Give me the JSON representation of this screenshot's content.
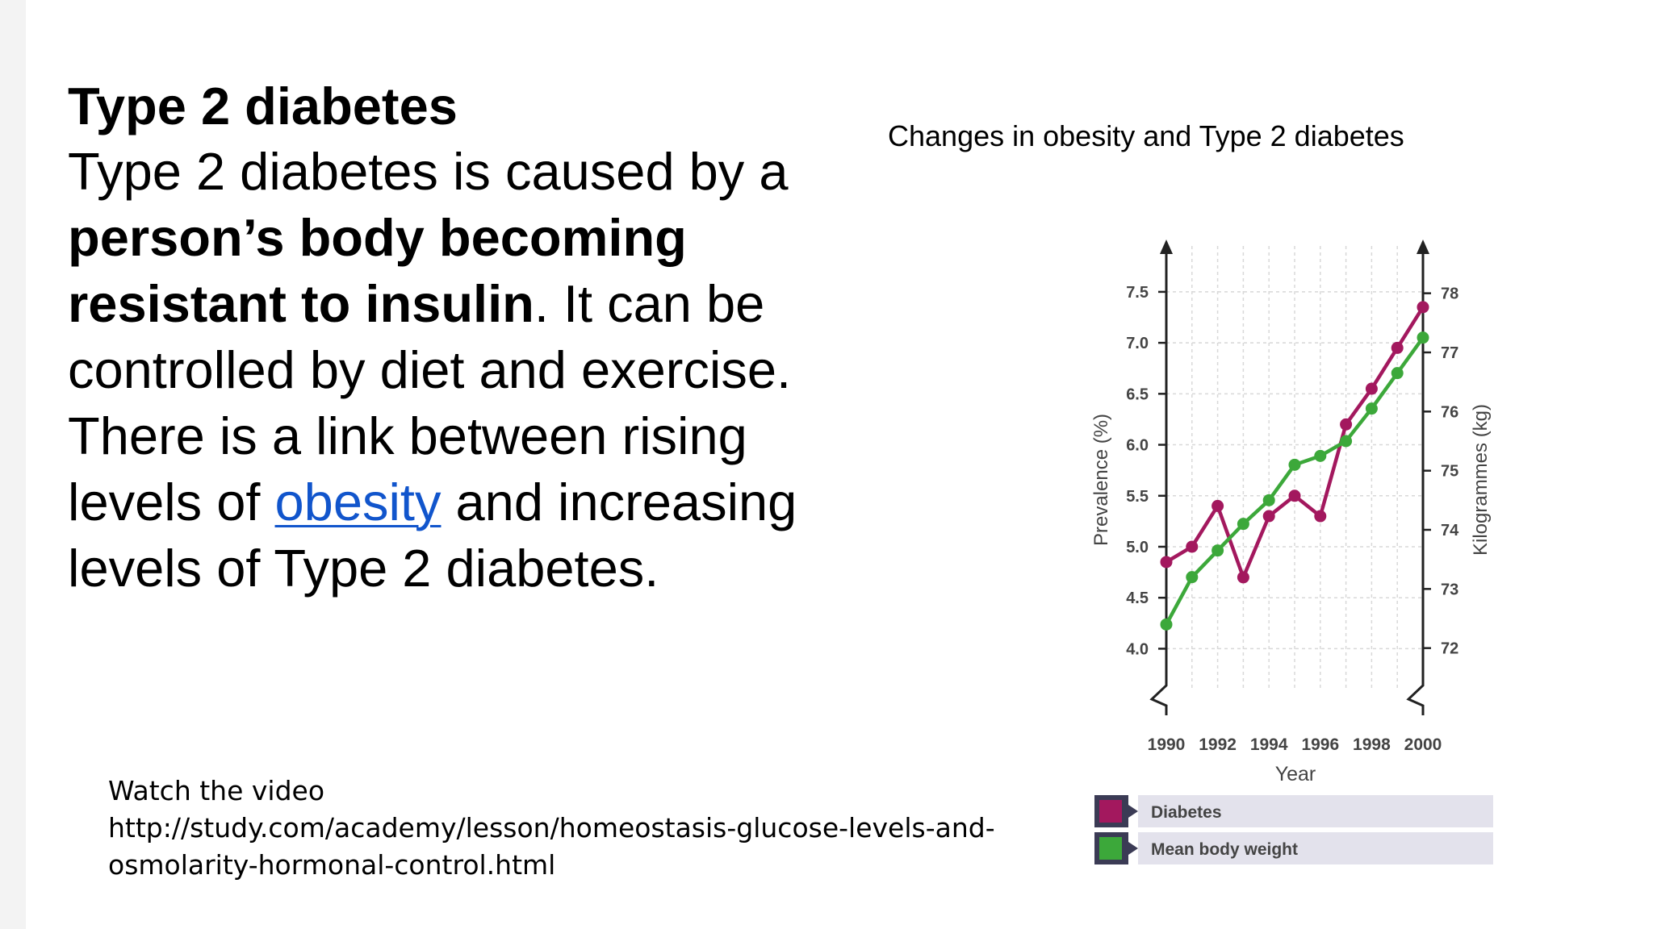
{
  "slide": {
    "heading": "Type 2 diabetes",
    "body": {
      "p1": "Type 2 diabetes is caused by a ",
      "bold": "person’s body becoming resistant to insulin",
      "p2": ". It can be controlled by diet and exercise. There is a link between rising levels of ",
      "link": "obesity",
      "p3": " and increasing levels of Type 2 diabetes."
    },
    "video": {
      "label": "Watch the video",
      "url": "http://study.com/academy/lesson/homeostasis-glucose-levels-and-osmolarity-hormonal-control.html"
    }
  },
  "chart_data": {
    "type": "line",
    "title": "Changes in obesity and Type 2 diabetes",
    "xlabel": "Year",
    "ylabel": "Prevalence (%)",
    "y2label": "Kilogrammes (kg)",
    "x": [
      1990,
      1991,
      1992,
      1993,
      1994,
      1995,
      1996,
      1997,
      1998,
      1999,
      2000
    ],
    "xticks": [
      "1990",
      "1992",
      "1994",
      "1996",
      "1998",
      "2000"
    ],
    "yticks": [
      "4.0",
      "4.5",
      "5.0",
      "5.5",
      "6.0",
      "6.5",
      "7.0",
      "7.5"
    ],
    "y2ticks": [
      "72",
      "73",
      "74",
      "75",
      "76",
      "77",
      "78"
    ],
    "ylim": [
      3.6,
      7.95
    ],
    "y2lim": [
      71.3,
      78.8
    ],
    "grid": true,
    "series": [
      {
        "name": "Diabetes",
        "axis": "left",
        "color": "#a3185e",
        "values": [
          4.85,
          5.0,
          5.4,
          4.7,
          5.3,
          5.5,
          5.3,
          6.2,
          6.55,
          6.95,
          7.35
        ]
      },
      {
        "name": "Mean body weight",
        "axis": "right",
        "color": "#3ca83a",
        "values": [
          72.4,
          73.2,
          73.65,
          74.1,
          74.5,
          75.1,
          75.25,
          75.5,
          76.05,
          76.65,
          77.25
        ]
      }
    ],
    "legend": [
      {
        "label": "Diabetes",
        "color": "#a3185e"
      },
      {
        "label": "Mean body weight",
        "color": "#3ca83a"
      }
    ]
  }
}
